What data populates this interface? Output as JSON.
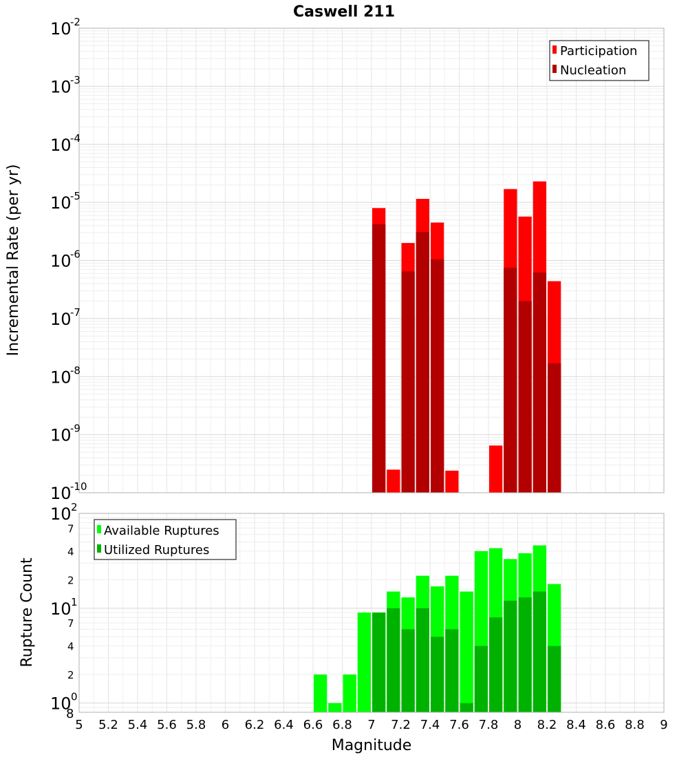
{
  "chart_data": [
    {
      "type": "bar",
      "title": "Caswell 211",
      "xlabel": "Magnitude",
      "ylabel": "Incremental Rate (per yr)",
      "yscale": "log",
      "ylim": [
        1e-10,
        0.01
      ],
      "xlim": [
        5,
        9
      ],
      "bar_width": 0.1,
      "grid": true,
      "legend_position": "top-right",
      "y_ticks": [
        {
          "mantissa": "10",
          "exponent": "-10",
          "value": 1e-10
        },
        {
          "mantissa": "10",
          "exponent": "-9",
          "value": 1e-09
        },
        {
          "mantissa": "10",
          "exponent": "-8",
          "value": 1e-08
        },
        {
          "mantissa": "10",
          "exponent": "-7",
          "value": 1e-07
        },
        {
          "mantissa": "10",
          "exponent": "-6",
          "value": 1e-06
        },
        {
          "mantissa": "10",
          "exponent": "-5",
          "value": 1e-05
        },
        {
          "mantissa": "10",
          "exponent": "-4",
          "value": 0.0001
        },
        {
          "mantissa": "10",
          "exponent": "-3",
          "value": 0.001
        },
        {
          "mantissa": "10",
          "exponent": "-2",
          "value": 0.01
        }
      ],
      "series": [
        {
          "name": "Participation",
          "color": "#ff0000",
          "x": [
            7.0,
            7.1,
            7.2,
            7.3,
            7.4,
            7.5,
            7.8,
            7.9,
            8.0,
            8.1,
            8.2
          ],
          "values": [
            8e-06,
            2.5e-10,
            2e-06,
            1.15e-05,
            4.5e-06,
            2.4e-10,
            6.5e-10,
            1.7e-05,
            5.7e-06,
            2.3e-05,
            4.4e-07
          ]
        },
        {
          "name": "Nucleation",
          "color": "#b20000",
          "x": [
            7.0,
            7.2,
            7.3,
            7.4,
            7.9,
            8.0,
            8.1,
            8.2
          ],
          "values": [
            4.2e-06,
            6.5e-07,
            3.1e-06,
            1.05e-06,
            7.5e-07,
            2e-07,
            6.2e-07,
            1.7e-08
          ]
        }
      ]
    },
    {
      "type": "bar",
      "xlabel": "Magnitude",
      "ylabel": "Rupture Count",
      "yscale": "log",
      "ylim": [
        0.8,
        100
      ],
      "xlim": [
        5,
        9
      ],
      "bar_width": 0.1,
      "grid": true,
      "legend_position": "top-left",
      "x_tick_labels": [
        "5",
        "5.2",
        "5.4",
        "5.6",
        "5.8",
        "6",
        "6.2",
        "6.4",
        "6.6",
        "6.8",
        "7",
        "7.2",
        "7.4",
        "7.6",
        "7.8",
        "8",
        "8.2",
        "8.4",
        "8.6",
        "8.8",
        "9"
      ],
      "y_major_ticks": [
        {
          "mantissa": "10",
          "exponent": "0",
          "value": 1
        },
        {
          "mantissa": "10",
          "exponent": "1",
          "value": 10
        },
        {
          "mantissa": "10",
          "exponent": "2",
          "value": 100
        }
      ],
      "y_minor_ticks": [
        {
          "label": "8",
          "value": 0.8
        },
        {
          "label": "2",
          "value": 2
        },
        {
          "label": "4",
          "value": 4
        },
        {
          "label": "7",
          "value": 7
        },
        {
          "label": "2",
          "value": 20
        },
        {
          "label": "4",
          "value": 40
        },
        {
          "label": "7",
          "value": 70
        }
      ],
      "series": [
        {
          "name": "Available Ruptures",
          "color": "#00ff00",
          "x": [
            6.6,
            6.7,
            6.8,
            6.9,
            7.0,
            7.1,
            7.2,
            7.3,
            7.4,
            7.5,
            7.6,
            7.7,
            7.8,
            7.9,
            8.0,
            8.1,
            8.2
          ],
          "values": [
            2,
            1,
            2,
            9,
            9,
            15,
            13,
            22,
            17,
            22,
            15,
            40,
            43,
            33,
            38,
            46,
            18
          ]
        },
        {
          "name": "Utilized Ruptures",
          "color": "#00b200",
          "x": [
            7.0,
            7.1,
            7.2,
            7.3,
            7.4,
            7.5,
            7.6,
            7.7,
            7.8,
            7.9,
            8.0,
            8.1,
            8.2
          ],
          "values": [
            9,
            10,
            6,
            10,
            5,
            6,
            1,
            4,
            8,
            12,
            13,
            15,
            4
          ]
        }
      ]
    }
  ]
}
